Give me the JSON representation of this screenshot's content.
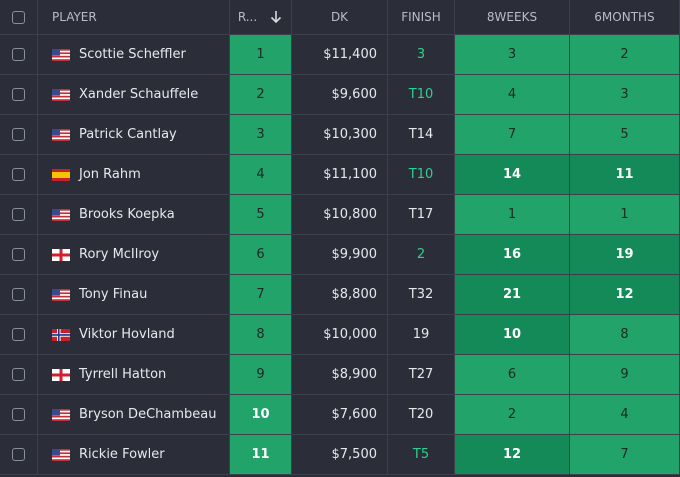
{
  "table": {
    "columns": [
      "PLAYER",
      "R...",
      "DK",
      "FINISH",
      "8WEEKS",
      "6MONTHS"
    ],
    "rows": [
      [
        "Scottie Scheffler",
        1,
        "$11,400",
        "3",
        3,
        2
      ],
      [
        "Xander Schauffele",
        2,
        "$9,600",
        "T10",
        4,
        3
      ],
      [
        "Patrick Cantlay",
        3,
        "$10,300",
        "T14",
        7,
        5
      ],
      [
        "Jon Rahm",
        4,
        "$11,100",
        "T10",
        14,
        11
      ],
      [
        "Brooks Koepka",
        5,
        "$10,800",
        "T17",
        1,
        1
      ],
      [
        "Rory McIlroy",
        6,
        "$9,900",
        "2",
        16,
        19
      ],
      [
        "Tony Finau",
        7,
        "$8,800",
        "T32",
        21,
        12
      ],
      [
        "Viktor Hovland",
        8,
        "$10,000",
        "19",
        10,
        8
      ],
      [
        "Tyrrell Hatton",
        9,
        "$8,900",
        "T27",
        6,
        9
      ],
      [
        "Bryson DeChambeau",
        10,
        "$7,600",
        "T20",
        2,
        4
      ],
      [
        "Rickie Fowler",
        11,
        "$7,500",
        "T5",
        12,
        7
      ]
    ]
  }
}
